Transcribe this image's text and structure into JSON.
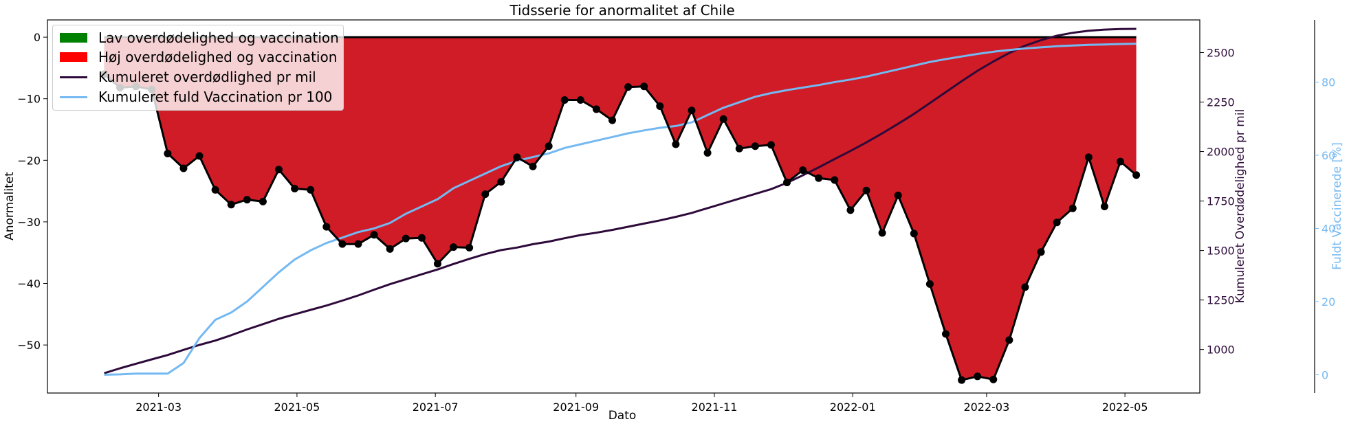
{
  "chart_data": {
    "type": "line",
    "title": "Tidsserie for anormalitet af Chile",
    "xlabel": "Dato",
    "ylabel": "Anormalitet",
    "ylabel_right1": "Kumuleret Overdødelighed pr mil",
    "ylabel_right2": "Fuldt Vaccinerede [%]",
    "ylim": [
      -57.8,
      2.8
    ],
    "ylim_right1": [
      780,
      2665
    ],
    "ylim_right2": [
      -5,
      97
    ],
    "grid": false,
    "legend_position": "top-left",
    "x_ticks": [
      "2021-03",
      "2021-05",
      "2021-07",
      "2021-09",
      "2021-11",
      "2022-01",
      "2022-03",
      "2022-05"
    ],
    "y_ticks": [
      0,
      -10,
      -20,
      -30,
      -40,
      -50
    ],
    "y_tick_labels": [
      "0",
      "−10",
      "−20",
      "−30",
      "−40",
      "−50"
    ],
    "y_right1_ticks": [
      1000,
      1250,
      1500,
      1750,
      2000,
      2250,
      2500
    ],
    "y_right2_ticks": [
      0,
      20,
      40,
      60,
      80
    ],
    "fill_colors": {
      "low": "#008000",
      "high": "#ff0000",
      "high_fill_rendered": "#d01c27"
    },
    "series": [
      {
        "name": "Anormalitet",
        "color": "#000000",
        "points": [
          [
            "2021-02-05",
            -6.0
          ],
          [
            "2021-02-12",
            -8.2
          ],
          [
            "2021-02-19",
            -8.0
          ],
          [
            "2021-02-26",
            -8.5
          ],
          [
            "2021-03-05",
            -18.9
          ],
          [
            "2021-03-12",
            -21.3
          ],
          [
            "2021-03-19",
            -19.3
          ],
          [
            "2021-03-26",
            -24.8
          ],
          [
            "2021-04-02",
            -27.2
          ],
          [
            "2021-04-09",
            -26.4
          ],
          [
            "2021-04-16",
            -26.7
          ],
          [
            "2021-04-23",
            -21.5
          ],
          [
            "2021-04-30",
            -24.6
          ],
          [
            "2021-05-07",
            -24.8
          ],
          [
            "2021-05-14",
            -30.8
          ],
          [
            "2021-05-21",
            -33.6
          ],
          [
            "2021-05-28",
            -33.6
          ],
          [
            "2021-06-04",
            -32.1
          ],
          [
            "2021-06-11",
            -34.4
          ],
          [
            "2021-06-18",
            -32.7
          ],
          [
            "2021-06-25",
            -32.6
          ],
          [
            "2021-07-02",
            -36.8
          ],
          [
            "2021-07-09",
            -34.1
          ],
          [
            "2021-07-16",
            -34.2
          ],
          [
            "2021-07-23",
            -25.5
          ],
          [
            "2021-07-30",
            -23.5
          ],
          [
            "2021-08-06",
            -19.5
          ],
          [
            "2021-08-13",
            -21.0
          ],
          [
            "2021-08-20",
            -17.7
          ],
          [
            "2021-08-27",
            -10.2
          ],
          [
            "2021-09-03",
            -10.2
          ],
          [
            "2021-09-10",
            -11.7
          ],
          [
            "2021-09-17",
            -13.5
          ],
          [
            "2021-09-24",
            -8.1
          ],
          [
            "2021-10-01",
            -8.0
          ],
          [
            "2021-10-08",
            -11.2
          ],
          [
            "2021-10-15",
            -17.4
          ],
          [
            "2021-10-22",
            -11.9
          ],
          [
            "2021-10-29",
            -18.8
          ],
          [
            "2021-11-05",
            -13.3
          ],
          [
            "2021-11-12",
            -18.1
          ],
          [
            "2021-11-19",
            -17.7
          ],
          [
            "2021-11-26",
            -17.5
          ],
          [
            "2021-12-03",
            -23.6
          ],
          [
            "2021-12-10",
            -21.6
          ],
          [
            "2021-12-17",
            -22.9
          ],
          [
            "2021-12-24",
            -23.2
          ],
          [
            "2021-12-31",
            -28.1
          ],
          [
            "2022-01-07",
            -24.9
          ],
          [
            "2022-01-14",
            -31.8
          ],
          [
            "2022-01-21",
            -25.7
          ],
          [
            "2022-01-28",
            -31.9
          ],
          [
            "2022-02-04",
            -40.1
          ],
          [
            "2022-02-11",
            -48.2
          ],
          [
            "2022-02-18",
            -55.7
          ],
          [
            "2022-02-25",
            -55.1
          ],
          [
            "2022-03-04",
            -55.6
          ],
          [
            "2022-03-11",
            -49.2
          ],
          [
            "2022-03-18",
            -40.6
          ],
          [
            "2022-03-25",
            -34.9
          ],
          [
            "2022-04-01",
            -30.1
          ],
          [
            "2022-04-08",
            -27.8
          ],
          [
            "2022-04-15",
            -19.5
          ],
          [
            "2022-04-22",
            -27.5
          ],
          [
            "2022-04-29",
            -20.2
          ],
          [
            "2022-05-06",
            -22.4
          ]
        ]
      },
      {
        "name": "Kumuleret overdødlighed pr mil",
        "color": "#2d0a3a",
        "axis": "right1",
        "points": [
          [
            "2021-02-05",
            880
          ],
          [
            "2021-02-12",
            905
          ],
          [
            "2021-02-19",
            928
          ],
          [
            "2021-02-26",
            950
          ],
          [
            "2021-03-05",
            972
          ],
          [
            "2021-03-12",
            998
          ],
          [
            "2021-03-19",
            1023
          ],
          [
            "2021-03-26",
            1045
          ],
          [
            "2021-04-02",
            1072
          ],
          [
            "2021-04-09",
            1101
          ],
          [
            "2021-04-16",
            1128
          ],
          [
            "2021-04-23",
            1155
          ],
          [
            "2021-04-30",
            1178
          ],
          [
            "2021-05-07",
            1200
          ],
          [
            "2021-05-14",
            1222
          ],
          [
            "2021-05-21",
            1247
          ],
          [
            "2021-05-28",
            1273
          ],
          [
            "2021-06-04",
            1302
          ],
          [
            "2021-06-11",
            1330
          ],
          [
            "2021-06-18",
            1355
          ],
          [
            "2021-06-25",
            1380
          ],
          [
            "2021-07-02",
            1404
          ],
          [
            "2021-07-09",
            1432
          ],
          [
            "2021-07-16",
            1458
          ],
          [
            "2021-07-23",
            1482
          ],
          [
            "2021-07-30",
            1502
          ],
          [
            "2021-08-06",
            1515
          ],
          [
            "2021-08-13",
            1532
          ],
          [
            "2021-08-20",
            1545
          ],
          [
            "2021-08-27",
            1562
          ],
          [
            "2021-09-03",
            1578
          ],
          [
            "2021-09-10",
            1590
          ],
          [
            "2021-09-17",
            1604
          ],
          [
            "2021-09-24",
            1620
          ],
          [
            "2021-10-01",
            1636
          ],
          [
            "2021-10-08",
            1652
          ],
          [
            "2021-10-15",
            1670
          ],
          [
            "2021-10-22",
            1690
          ],
          [
            "2021-10-29",
            1714
          ],
          [
            "2021-11-05",
            1738
          ],
          [
            "2021-11-12",
            1762
          ],
          [
            "2021-11-19",
            1786
          ],
          [
            "2021-11-26",
            1810
          ],
          [
            "2021-12-03",
            1842
          ],
          [
            "2021-12-10",
            1880
          ],
          [
            "2021-12-17",
            1920
          ],
          [
            "2021-12-24",
            1962
          ],
          [
            "2021-12-31",
            2003
          ],
          [
            "2022-01-07",
            2046
          ],
          [
            "2022-01-14",
            2092
          ],
          [
            "2022-01-21",
            2140
          ],
          [
            "2022-01-28",
            2190
          ],
          [
            "2022-02-04",
            2245
          ],
          [
            "2022-02-11",
            2300
          ],
          [
            "2022-02-18",
            2355
          ],
          [
            "2022-02-25",
            2408
          ],
          [
            "2022-03-04",
            2455
          ],
          [
            "2022-03-11",
            2498
          ],
          [
            "2022-03-18",
            2535
          ],
          [
            "2022-03-25",
            2563
          ],
          [
            "2022-04-01",
            2585
          ],
          [
            "2022-04-08",
            2600
          ],
          [
            "2022-04-15",
            2610
          ],
          [
            "2022-04-22",
            2616
          ],
          [
            "2022-04-29",
            2619
          ],
          [
            "2022-05-06",
            2620
          ]
        ]
      },
      {
        "name": "Kumuleret fuld Vaccination pr 100",
        "color": "#74b9f2",
        "axis": "right2",
        "points": [
          [
            "2021-02-05",
            0.0
          ],
          [
            "2021-02-12",
            0.1
          ],
          [
            "2021-02-19",
            0.3
          ],
          [
            "2021-02-26",
            0.3
          ],
          [
            "2021-03-05",
            0.3
          ],
          [
            "2021-03-12",
            3.2
          ],
          [
            "2021-03-19",
            10.0
          ],
          [
            "2021-03-26",
            15.0
          ],
          [
            "2021-04-02",
            17.0
          ],
          [
            "2021-04-09",
            20.0
          ],
          [
            "2021-04-16",
            24.0
          ],
          [
            "2021-04-23",
            28.0
          ],
          [
            "2021-04-30",
            31.5
          ],
          [
            "2021-05-07",
            34.0
          ],
          [
            "2021-05-14",
            36.0
          ],
          [
            "2021-05-21",
            37.5
          ],
          [
            "2021-05-28",
            39.0
          ],
          [
            "2021-06-04",
            40.0
          ],
          [
            "2021-06-11",
            41.5
          ],
          [
            "2021-06-18",
            44.0
          ],
          [
            "2021-06-25",
            46.0
          ],
          [
            "2021-07-02",
            48.0
          ],
          [
            "2021-07-09",
            51.0
          ],
          [
            "2021-07-16",
            53.0
          ],
          [
            "2021-07-23",
            55.0
          ],
          [
            "2021-07-30",
            57.0
          ],
          [
            "2021-08-06",
            58.5
          ],
          [
            "2021-08-13",
            59.5
          ],
          [
            "2021-08-20",
            60.5
          ],
          [
            "2021-08-27",
            62.0
          ],
          [
            "2021-09-03",
            63.0
          ],
          [
            "2021-09-10",
            64.0
          ],
          [
            "2021-09-17",
            65.0
          ],
          [
            "2021-09-24",
            66.0
          ],
          [
            "2021-10-01",
            66.8
          ],
          [
            "2021-10-08",
            67.5
          ],
          [
            "2021-10-15",
            68.0
          ],
          [
            "2021-10-22",
            69.0
          ],
          [
            "2021-10-29",
            71.0
          ],
          [
            "2021-11-05",
            73.0
          ],
          [
            "2021-11-12",
            74.5
          ],
          [
            "2021-11-19",
            76.0
          ],
          [
            "2021-11-26",
            77.0
          ],
          [
            "2021-12-03",
            77.8
          ],
          [
            "2021-12-10",
            78.5
          ],
          [
            "2021-12-17",
            79.2
          ],
          [
            "2021-12-24",
            80.0
          ],
          [
            "2021-12-31",
            80.7
          ],
          [
            "2022-01-07",
            81.5
          ],
          [
            "2022-01-14",
            82.5
          ],
          [
            "2022-01-21",
            83.5
          ],
          [
            "2022-01-28",
            84.5
          ],
          [
            "2022-02-04",
            85.5
          ],
          [
            "2022-02-11",
            86.3
          ],
          [
            "2022-02-18",
            87.0
          ],
          [
            "2022-02-25",
            87.7
          ],
          [
            "2022-03-04",
            88.3
          ],
          [
            "2022-03-11",
            88.8
          ],
          [
            "2022-03-18",
            89.2
          ],
          [
            "2022-03-25",
            89.5
          ],
          [
            "2022-04-01",
            89.8
          ],
          [
            "2022-04-08",
            90.0
          ],
          [
            "2022-04-15",
            90.2
          ],
          [
            "2022-04-22",
            90.3
          ],
          [
            "2022-04-29",
            90.4
          ],
          [
            "2022-05-06",
            90.5
          ]
        ]
      }
    ],
    "legend": [
      {
        "label": "Lav overdødelighed og vaccination",
        "kind": "patch",
        "color": "#008000"
      },
      {
        "label": "Høj overdødelighed og vaccination",
        "kind": "patch",
        "color": "#ff0000"
      },
      {
        "label": "Kumuleret overdødlighed pr mil",
        "kind": "line",
        "color": "#2d0a3a"
      },
      {
        "label": "Kumuleret fuld Vaccination pr 100",
        "kind": "line",
        "color": "#74b9f2"
      }
    ]
  }
}
